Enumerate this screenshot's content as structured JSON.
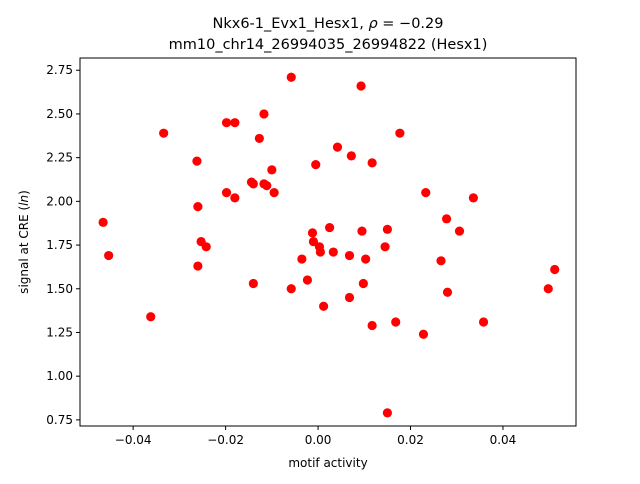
{
  "chart_data": {
    "type": "scatter",
    "title_line1_prefix": "Nkx6-1_Evx1_Hesx1, ",
    "title_line1_symbol": "ρ",
    "title_line1_suffix": " = −0.29",
    "title_line2": "mm10_chr14_26994035_26994822 (Hesx1)",
    "xlabel": "motif activity",
    "ylabel_prefix": "signal at CRE (",
    "ylabel_italic": "ln",
    "ylabel_suffix": ")",
    "xlim": [
      -0.0515,
      0.0558
    ],
    "ylim": [
      0.715,
      2.82
    ],
    "x_ticks": [
      -0.04,
      -0.02,
      0.0,
      0.02,
      0.04
    ],
    "x_tick_labels": [
      "−0.04",
      "−0.02",
      "0.00",
      "0.02",
      "0.04"
    ],
    "y_ticks": [
      0.75,
      1.0,
      1.25,
      1.5,
      1.75,
      2.0,
      2.25,
      2.5,
      2.75
    ],
    "y_tick_labels": [
      "0.75",
      "1.00",
      "1.25",
      "1.50",
      "1.75",
      "2.00",
      "2.25",
      "2.50",
      "2.75"
    ],
    "point_color": "#ff0000",
    "grid": false,
    "points": [
      {
        "x": -0.0465,
        "y": 1.88
      },
      {
        "x": -0.0453,
        "y": 1.69
      },
      {
        "x": -0.0362,
        "y": 1.34
      },
      {
        "x": -0.0334,
        "y": 2.39
      },
      {
        "x": -0.0262,
        "y": 2.23
      },
      {
        "x": -0.026,
        "y": 1.97
      },
      {
        "x": -0.026,
        "y": 1.63
      },
      {
        "x": -0.0253,
        "y": 1.77
      },
      {
        "x": -0.0242,
        "y": 1.74
      },
      {
        "x": -0.0198,
        "y": 2.45
      },
      {
        "x": -0.0198,
        "y": 2.05
      },
      {
        "x": -0.018,
        "y": 2.45
      },
      {
        "x": -0.018,
        "y": 2.02
      },
      {
        "x": -0.0144,
        "y": 2.11
      },
      {
        "x": -0.014,
        "y": 2.1
      },
      {
        "x": -0.014,
        "y": 1.53
      },
      {
        "x": -0.0127,
        "y": 2.36
      },
      {
        "x": -0.0117,
        "y": 2.5
      },
      {
        "x": -0.0117,
        "y": 2.1
      },
      {
        "x": -0.0111,
        "y": 2.09
      },
      {
        "x": -0.01,
        "y": 2.18
      },
      {
        "x": -0.0095,
        "y": 2.05
      },
      {
        "x": -0.0058,
        "y": 2.71
      },
      {
        "x": -0.0058,
        "y": 1.5
      },
      {
        "x": -0.0035,
        "y": 1.67
      },
      {
        "x": -0.0023,
        "y": 1.55
      },
      {
        "x": -0.0012,
        "y": 1.82
      },
      {
        "x": -0.001,
        "y": 1.77
      },
      {
        "x": -0.0005,
        "y": 2.21
      },
      {
        "x": 0.0003,
        "y": 1.74
      },
      {
        "x": 0.0005,
        "y": 1.71
      },
      {
        "x": 0.0012,
        "y": 1.4
      },
      {
        "x": 0.0025,
        "y": 1.85
      },
      {
        "x": 0.0033,
        "y": 1.71
      },
      {
        "x": 0.0042,
        "y": 2.31
      },
      {
        "x": 0.0068,
        "y": 1.69
      },
      {
        "x": 0.0068,
        "y": 1.45
      },
      {
        "x": 0.0072,
        "y": 2.26
      },
      {
        "x": 0.0093,
        "y": 2.66
      },
      {
        "x": 0.0095,
        "y": 1.83
      },
      {
        "x": 0.0098,
        "y": 1.53
      },
      {
        "x": 0.0103,
        "y": 1.67
      },
      {
        "x": 0.0117,
        "y": 2.22
      },
      {
        "x": 0.0117,
        "y": 1.29
      },
      {
        "x": 0.0145,
        "y": 1.74
      },
      {
        "x": 0.015,
        "y": 1.84
      },
      {
        "x": 0.015,
        "y": 0.79
      },
      {
        "x": 0.0168,
        "y": 1.31
      },
      {
        "x": 0.0177,
        "y": 2.39
      },
      {
        "x": 0.0228,
        "y": 1.24
      },
      {
        "x": 0.0233,
        "y": 2.05
      },
      {
        "x": 0.0266,
        "y": 1.66
      },
      {
        "x": 0.0278,
        "y": 1.9
      },
      {
        "x": 0.028,
        "y": 1.48
      },
      {
        "x": 0.0306,
        "y": 1.83
      },
      {
        "x": 0.0336,
        "y": 2.02
      },
      {
        "x": 0.0358,
        "y": 1.31
      },
      {
        "x": 0.0498,
        "y": 1.5
      },
      {
        "x": 0.0512,
        "y": 1.61
      }
    ]
  }
}
